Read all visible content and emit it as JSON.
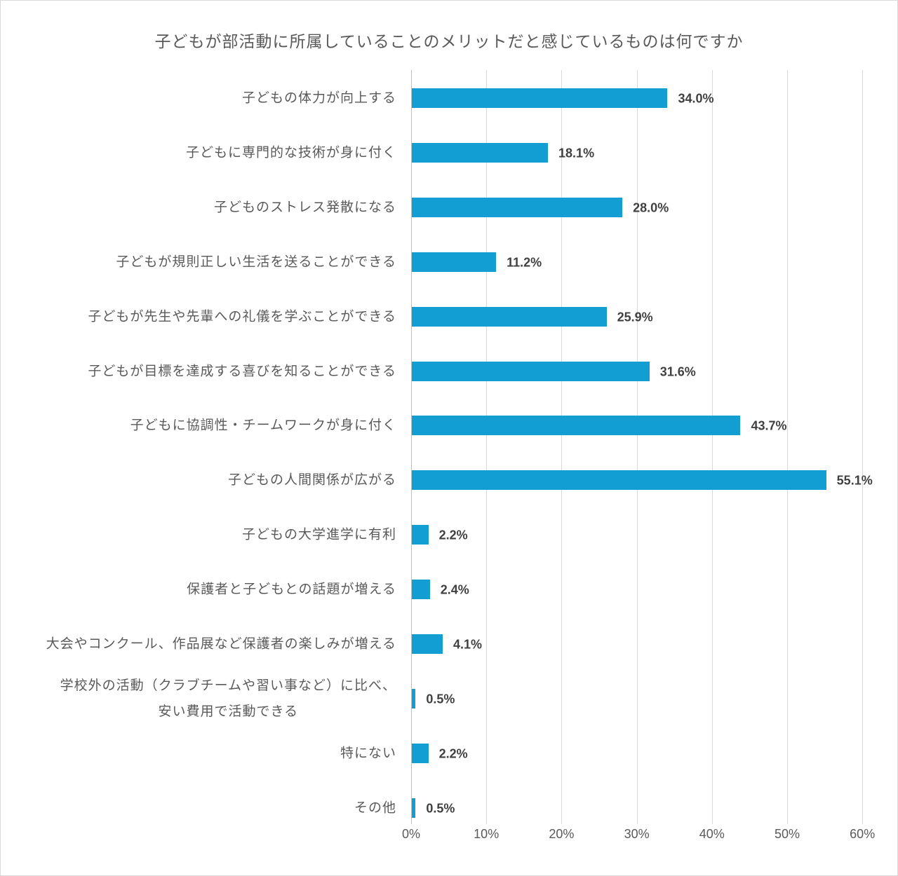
{
  "chart_data": {
    "type": "bar",
    "orientation": "horizontal",
    "title": "子どもが部活動に所属していることのメリットだと感じているものは何ですか",
    "categories": [
      "子どもの体力が向上する",
      "子どもに専門的な技術が身に付く",
      "子どものストレス発散になる",
      "子どもが規則正しい生活を送ることができる",
      "子どもが先生や先輩への礼儀を学ぶことができる",
      "子どもが目標を達成する喜びを知ることができる",
      "子どもに協調性・チームワークが身に付く",
      "子どもの人間関係が広がる",
      "子どもの大学進学に有利",
      "保護者と子どもとの話題が増える",
      "大会やコンクール、作品展など保護者の楽しみが増える",
      "学校外の活動（クラブチームや習い事など）に比べ、\n安い費用で活動できる",
      "特にない",
      "その他"
    ],
    "values": [
      34.0,
      18.1,
      28.0,
      11.2,
      25.9,
      31.6,
      43.7,
      55.1,
      2.2,
      2.4,
      4.1,
      0.5,
      2.2,
      0.5
    ],
    "value_labels": [
      "34.0%",
      "18.1%",
      "28.0%",
      "11.2%",
      "25.9%",
      "31.6%",
      "43.7%",
      "55.1%",
      "2.2%",
      "2.4%",
      "4.1%",
      "0.5%",
      "2.2%",
      "0.5%"
    ],
    "xlim": [
      0,
      60
    ],
    "xticks": [
      "0%",
      "10%",
      "20%",
      "30%",
      "40%",
      "50%",
      "60%"
    ],
    "grid": true,
    "bar_color": "#139ed3",
    "xlabel": "",
    "ylabel": ""
  }
}
